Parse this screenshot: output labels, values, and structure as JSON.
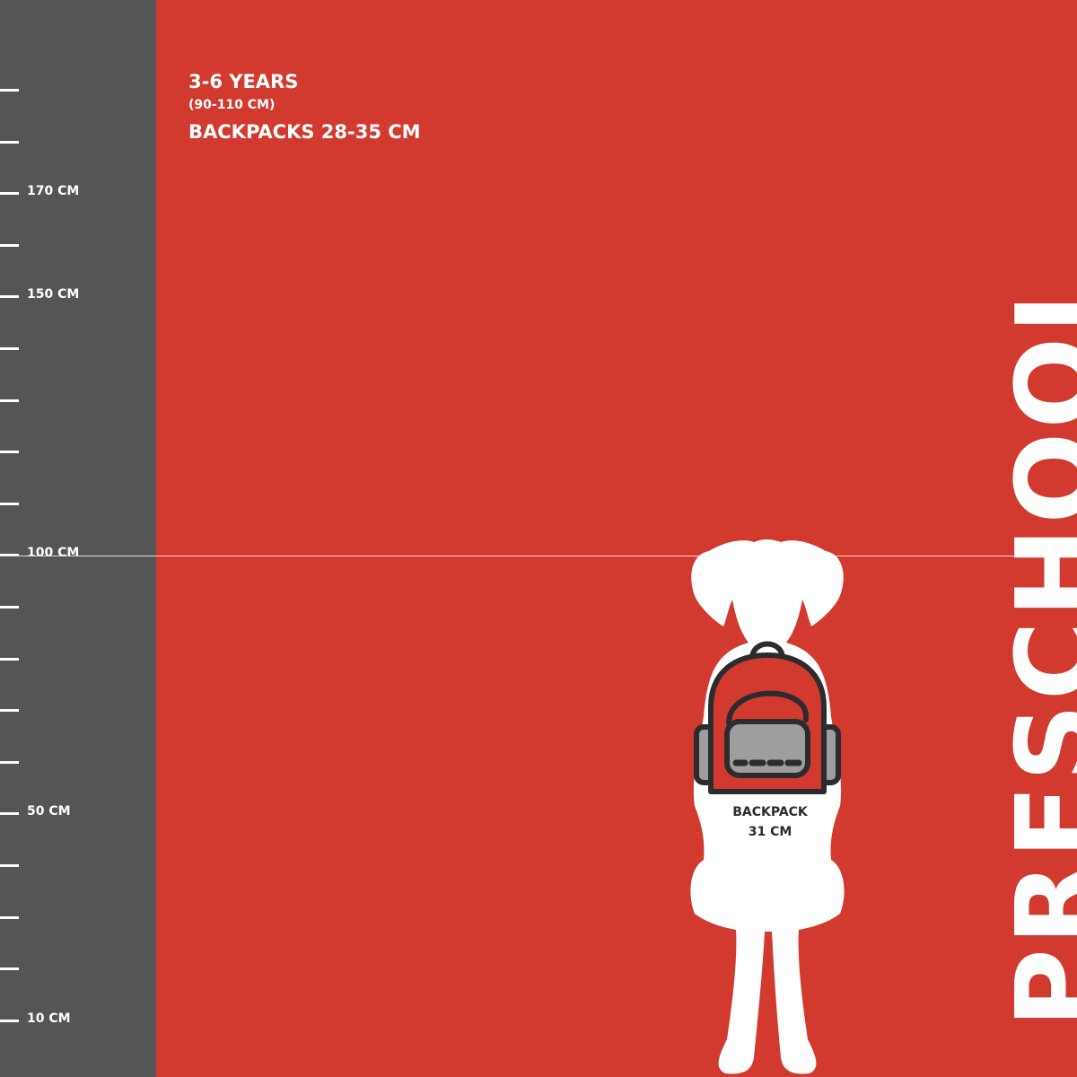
{
  "ruler": {
    "labels": [
      "170 CM",
      "150 CM",
      "100 CM",
      "50 CM",
      "10 CM"
    ]
  },
  "header": {
    "age": "3-6 YEARS",
    "height_range": "(90-110 CM)",
    "backpack_range": "BACKPACKS 28-35 CM"
  },
  "category_title": "PRESCHOOL",
  "figure": {
    "backpack_label": "BACKPACK",
    "backpack_size": "31 CM"
  },
  "colors": {
    "background": "#d23a2f",
    "ruler": "#555556",
    "text": "#ffffff",
    "backpack_outline": "#2c2c2e",
    "pocket": "#9e9e9e"
  }
}
